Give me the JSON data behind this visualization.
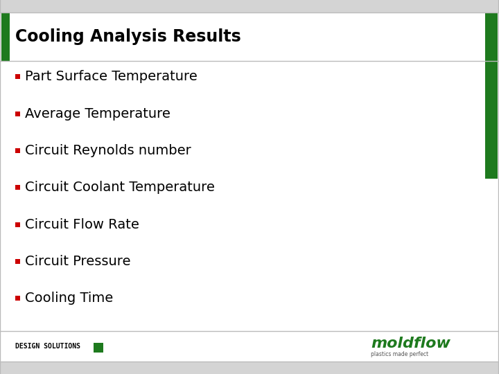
{
  "title": "Cooling Analysis Results",
  "bullet_items": [
    "Part Surface Temperature",
    "Average Temperature",
    "Circuit Reynolds number",
    "Circuit Coolant Temperature",
    "Circuit Flow Rate",
    "Circuit Pressure",
    "Cooling Time"
  ],
  "bullet_color": "#CC0000",
  "title_color": "#000000",
  "text_color": "#000000",
  "bg_color": "#FFFFFF",
  "border_color": "#BBBBBB",
  "green_color": "#1E7A1E",
  "footer_text": "DESIGN SOLUTIONS",
  "footer_text_color": "#000000",
  "strip_color": "#D4D4D4",
  "title_fontsize": 17,
  "bullet_fontsize": 14,
  "footer_fontsize": 7,
  "logo_fontsize": 16
}
